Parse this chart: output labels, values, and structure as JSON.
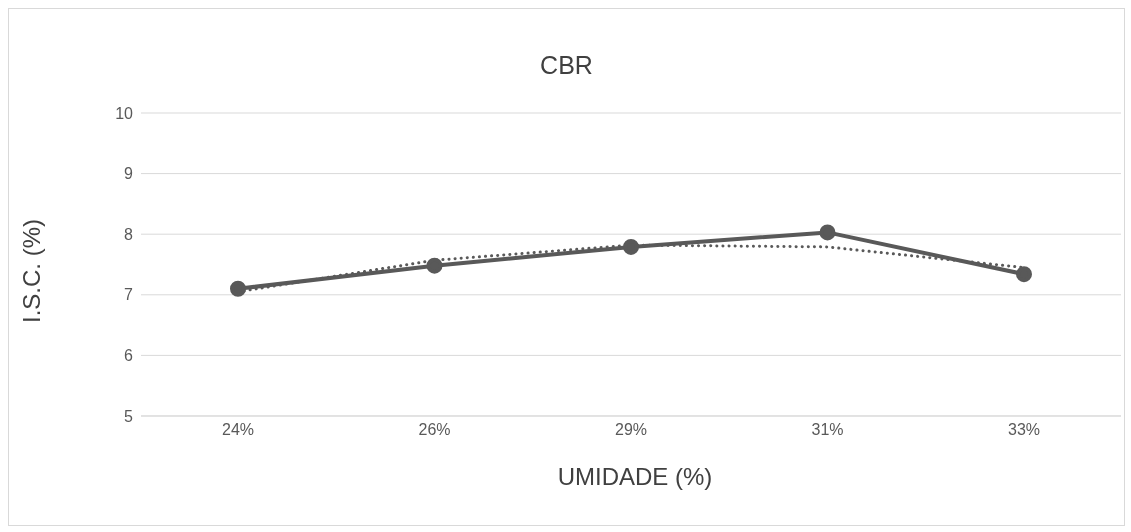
{
  "chart_data": {
    "type": "line",
    "title": "CBR",
    "xlabel": "UMIDADE (%)",
    "ylabel": "I.S.C. (%)",
    "categories": [
      "24%",
      "26%",
      "29%",
      "31%",
      "33%"
    ],
    "series": [
      {
        "color": "#595959",
        "values": [
          7.1,
          7.48,
          7.79,
          8.03,
          7.34
        ],
        "marker": "circle",
        "line_style": "solid"
      },
      {
        "color": "#595959",
        "values": [
          7.05,
          7.57,
          7.82,
          7.79,
          7.45
        ],
        "marker": "none",
        "line_style": "dotted"
      }
    ],
    "ylim": [
      5,
      10
    ],
    "yticks": [
      5,
      6,
      7,
      8,
      9,
      10
    ],
    "grid": "y",
    "legend": false
  }
}
